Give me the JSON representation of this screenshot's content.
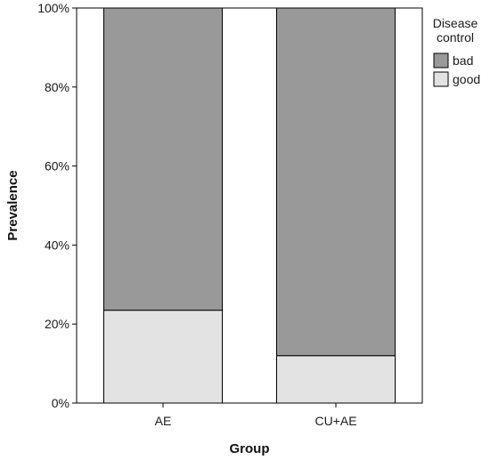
{
  "chart_data": {
    "type": "bar",
    "stacked": true,
    "percent": true,
    "categories": [
      "AE",
      "CU+AE"
    ],
    "series": [
      {
        "name": "good",
        "color": "#e3e3e3",
        "values": [
          23.5,
          12
        ]
      },
      {
        "name": "bad",
        "color": "#999999",
        "values": [
          76.5,
          88
        ]
      }
    ],
    "xlabel": "Group",
    "ylabel": "Prevalence",
    "ylim": [
      0,
      100
    ],
    "yticks": [
      "0%",
      "20%",
      "40%",
      "60%",
      "80%",
      "100%"
    ],
    "legend": {
      "title_lines": [
        "Disease",
        "control"
      ],
      "position": "top-right",
      "order": [
        "bad",
        "good"
      ]
    },
    "grid": false
  }
}
